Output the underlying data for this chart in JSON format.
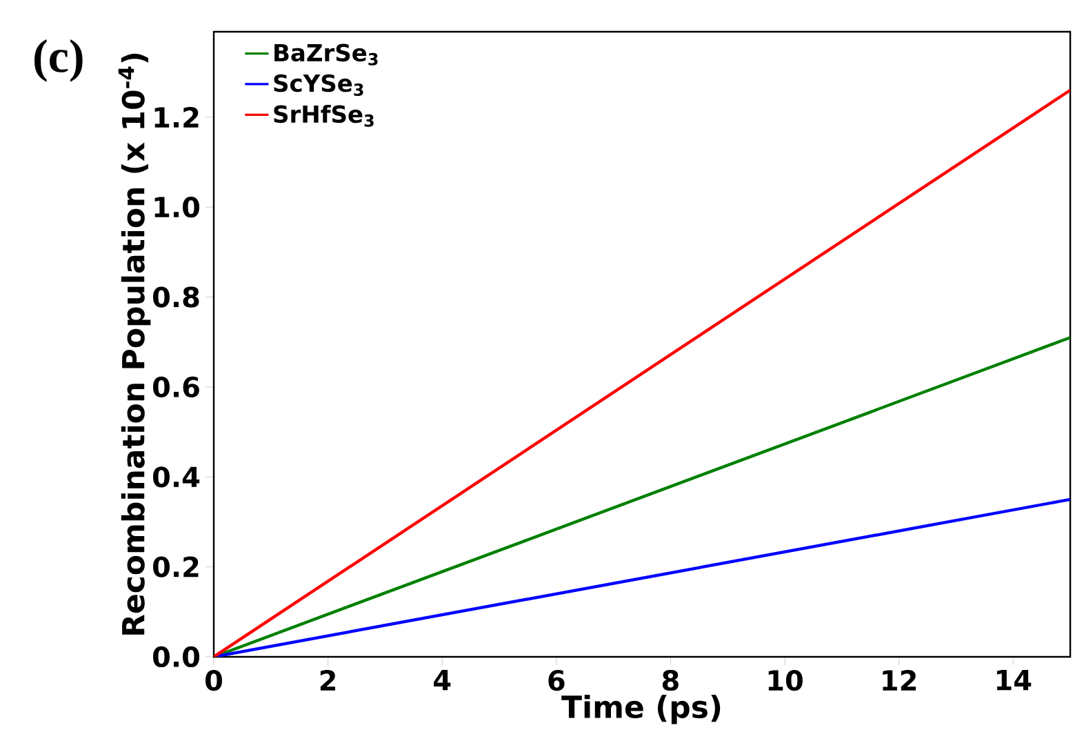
{
  "chart_data": {
    "type": "line",
    "xlabel": "Time (ps)",
    "ylabel": "Recombination Population (x 10$^{-4}$)",
    "annotations": [
      "(c)"
    ],
    "xlim": [
      0,
      15
    ],
    "ylim": [
      0,
      1.39
    ],
    "xticks": [
      0,
      2,
      4,
      6,
      8,
      10,
      12,
      14
    ],
    "yticks": [
      {
        "value": 0,
        "label": "0.0"
      },
      0.2,
      0.4,
      0.6,
      0.8,
      {
        "value": 1,
        "label": "1.0"
      },
      1.2
    ],
    "legend": "top left",
    "grid": false,
    "x": [
      0,
      15
    ],
    "series": [
      {
        "name": "BaZrSe$_{3}$",
        "color": "#008000",
        "values": [
          0,
          0.71
        ]
      },
      {
        "name": "ScYSe$_{3}$",
        "color": "#0000ff",
        "values": [
          0,
          0.35
        ]
      },
      {
        "name": "SrHfSe$_{3}$",
        "color": "#ff0000",
        "values": [
          0,
          1.26
        ]
      }
    ]
  }
}
